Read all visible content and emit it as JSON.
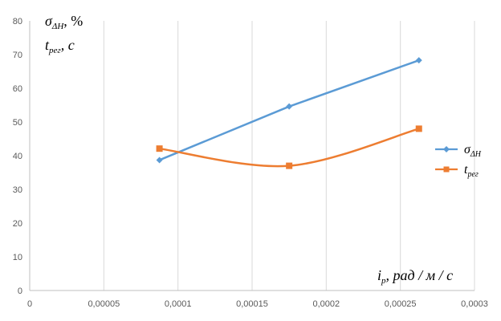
{
  "chart_data": {
    "type": "line",
    "xlim": [
      0,
      0.0003
    ],
    "ylim": [
      0,
      80
    ],
    "x_ticks": [
      "0",
      "0,00005",
      "0,0001",
      "0,00015",
      "0,0002",
      "0,00025",
      "0,0003"
    ],
    "y_ticks": [
      "0",
      "10",
      "20",
      "30",
      "40",
      "50",
      "60",
      "70",
      "80"
    ],
    "ylabel_line1": {
      "base": "σ",
      "sub": "ΔH",
      "suffix": ", %"
    },
    "ylabel_line2": {
      "base": "t",
      "sub": "рег",
      "suffix": ", с"
    },
    "xlabel": {
      "base": "i",
      "sub": "р",
      "suffix": ", рад / м / с"
    },
    "grid": {
      "vertical": true,
      "horizontal": false
    },
    "legend_position": "right",
    "series": [
      {
        "legend_base": "σ",
        "legend_sub": "ΔH",
        "color": "#5B9BD5",
        "marker": "diamond",
        "smooth": false,
        "x": [
          8.75e-05,
          0.000175,
          0.0002625
        ],
        "y": [
          38.7,
          54.6,
          68.3
        ]
      },
      {
        "legend_base": "t",
        "legend_sub": "рег",
        "color": "#ED7D31",
        "marker": "square",
        "smooth": true,
        "x": [
          8.75e-05,
          0.000175,
          0.0002625
        ],
        "y": [
          42.1,
          37.0,
          48.0
        ]
      }
    ]
  }
}
